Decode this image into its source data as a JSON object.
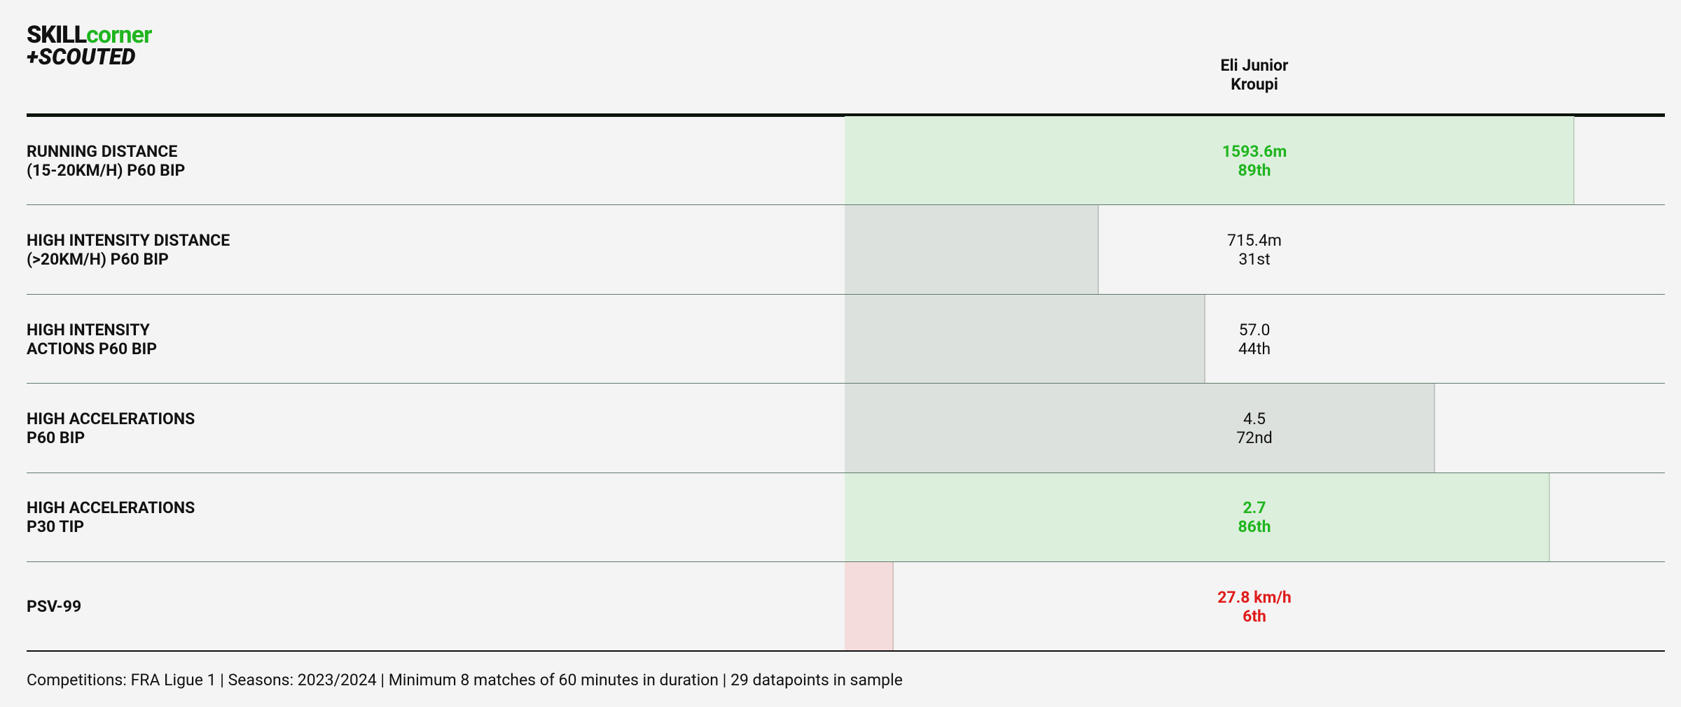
{
  "logo": {
    "part1": "SKILL",
    "part2": "corner",
    "part3": "+SCOUTED"
  },
  "chart_data": {
    "type": "percentile-bar",
    "categories": [
      "RUNNING DISTANCE\n(15-20KM/H) P60 BIP",
      "HIGH INTENSITY DISTANCE\n(>20KM/H) P60 BIP",
      "HIGH INTENSITY\nACTIONS P60 BIP",
      "HIGH ACCELERATIONS\nP60 BIP",
      "HIGH ACCELERATIONS\nP30 TIP",
      "PSV-99"
    ],
    "series": [
      {
        "name": "Eli Junior\nKroupi",
        "values": [
          89,
          31,
          44,
          72,
          86,
          6
        ],
        "value_labels": [
          "89th",
          "31st",
          "44th",
          "72nd",
          "86th",
          "6th"
        ]
      }
    ],
    "raw_labels": [
      "1593.6m",
      "715.4m",
      "57.0",
      "4.5",
      "2.7",
      "27.8 km/h"
    ],
    "bar_colors": [
      "#dcefdc",
      "#dde1dd",
      "#dde1dd",
      "#dde1dd",
      "#dcefdc",
      "#f5dcdc"
    ],
    "label_colors": [
      "#1fb51f",
      "#111111",
      "#111111",
      "#111111",
      "#1fb51f",
      "#e01b1b"
    ],
    "xlim": [
      0,
      100
    ],
    "footer": "Competitions: FRA Ligue 1 | Seasons: 2023/2024 | Minimum 8 matches of 60 minutes in duration | 29 datapoints in sample"
  }
}
